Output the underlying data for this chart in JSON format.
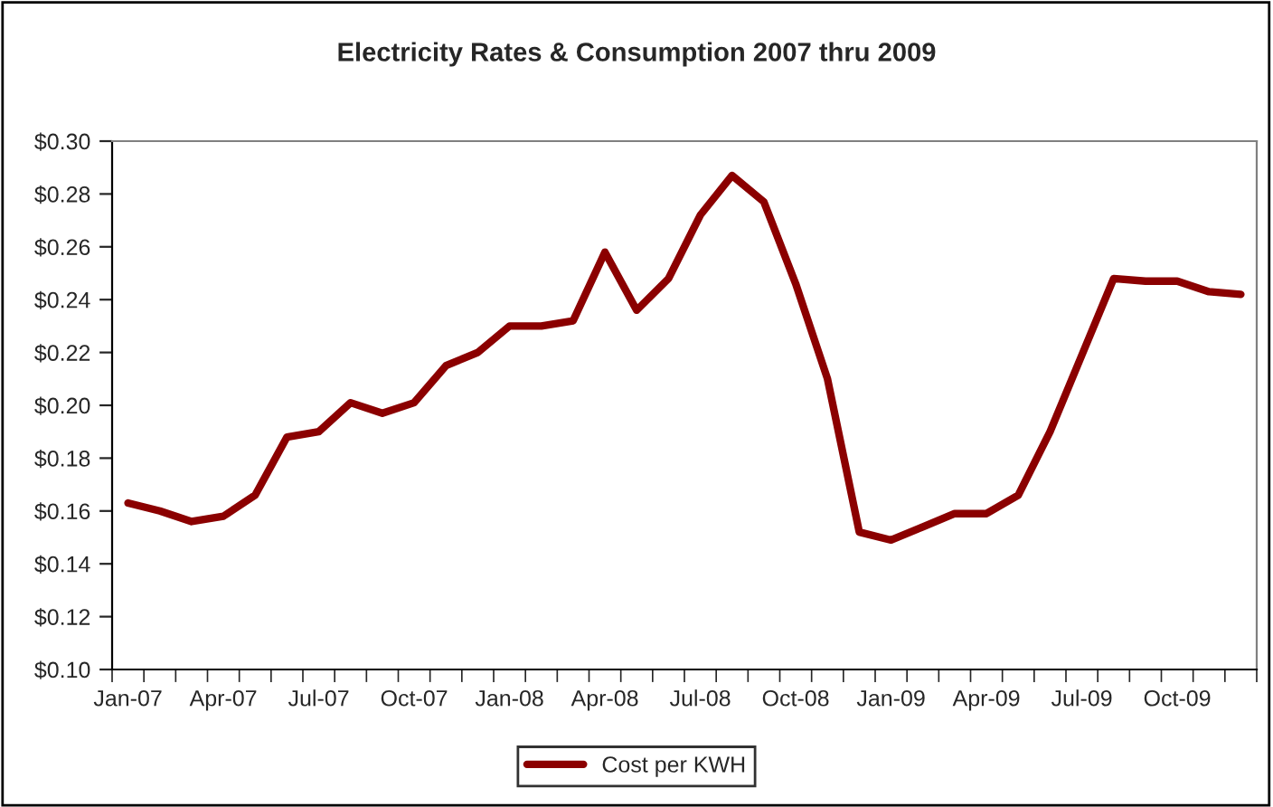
{
  "chart_data": {
    "type": "line",
    "title": "Electricity Rates & Consumption 2007 thru 2009",
    "categories": [
      "Jan-07",
      null,
      null,
      "Apr-07",
      null,
      null,
      "Jul-07",
      null,
      null,
      "Oct-07",
      null,
      null,
      "Jan-08",
      null,
      null,
      "Apr-08",
      null,
      null,
      "Jul-08",
      null,
      null,
      "Oct-08",
      null,
      null,
      "Jan-09",
      null,
      null,
      "Apr-09",
      null,
      null,
      "Jul-09",
      null,
      null,
      "Oct-09",
      null,
      null
    ],
    "series": [
      {
        "name": "Cost per KWH",
        "color": "#8b0000",
        "values": [
          0.163,
          0.16,
          0.156,
          0.158,
          0.166,
          0.188,
          0.19,
          0.201,
          0.197,
          0.201,
          0.215,
          0.22,
          0.23,
          0.23,
          0.232,
          0.258,
          0.236,
          0.248,
          0.272,
          0.287,
          0.277,
          0.246,
          0.21,
          0.152,
          0.149,
          0.154,
          0.159,
          0.159,
          0.166,
          0.19,
          0.219,
          0.248,
          0.247,
          0.247,
          0.243,
          0.242
        ]
      }
    ],
    "ylim": [
      0.1,
      0.3
    ],
    "yticks": [
      {
        "value": 0.1,
        "label": "$0.10"
      },
      {
        "value": 0.12,
        "label": "$0.12"
      },
      {
        "value": 0.14,
        "label": "$0.14"
      },
      {
        "value": 0.16,
        "label": "$0.16"
      },
      {
        "value": 0.18,
        "label": "$0.18"
      },
      {
        "value": 0.2,
        "label": "$0.20"
      },
      {
        "value": 0.22,
        "label": "$0.22"
      },
      {
        "value": 0.24,
        "label": "$0.24"
      },
      {
        "value": 0.26,
        "label": "$0.26"
      },
      {
        "value": 0.28,
        "label": "$0.28"
      },
      {
        "value": 0.3,
        "label": "$0.30"
      }
    ],
    "legend": "bottom",
    "grid": false,
    "marker": "none",
    "line_style": "solid"
  }
}
